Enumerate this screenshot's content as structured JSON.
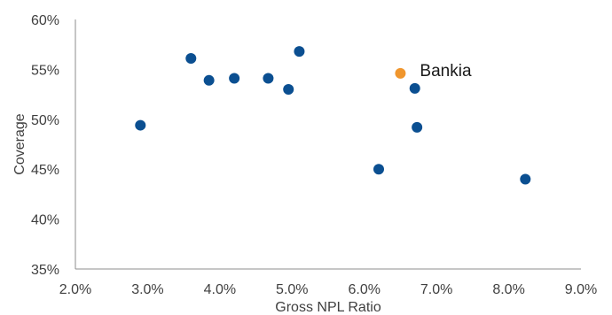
{
  "chart_data": {
    "type": "scatter",
    "title": "",
    "xlabel": "Gross NPL Ratio",
    "ylabel": "Coverage",
    "xlim": [
      0.02,
      0.09
    ],
    "ylim": [
      0.35,
      0.6
    ],
    "x_ticks": [
      "2.0%",
      "3.0%",
      "4.0%",
      "5.0%",
      "6.0%",
      "7.0%",
      "8.0%",
      "9.0%"
    ],
    "y_ticks": [
      "35%",
      "40%",
      "45%",
      "50%",
      "55%",
      "60%"
    ],
    "grid": false,
    "colors": {
      "peers": "#0b4f91",
      "highlight": "#f0962d",
      "axis": "#8c8c8c"
    },
    "series": [
      {
        "x": [
          0.029,
          0.036,
          0.0385,
          0.042,
          0.0467,
          0.0495,
          0.051,
          0.062,
          0.067,
          0.0673,
          0.0823
        ],
        "y": [
          0.494,
          0.561,
          0.539,
          0.541,
          0.541,
          0.53,
          0.568,
          0.45,
          0.531,
          0.492,
          0.44
        ]
      },
      {
        "name": "Bankia",
        "x": [
          0.065
        ],
        "y": [
          0.546
        ]
      }
    ],
    "annotations": [
      {
        "text": "Bankia",
        "x": 0.065,
        "y": 0.546
      }
    ]
  }
}
